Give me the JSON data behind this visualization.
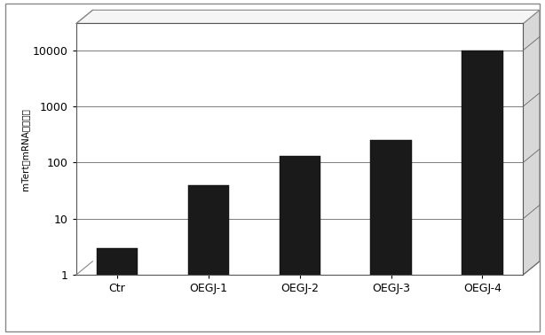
{
  "categories": [
    "Ctr",
    "OEGJ-1",
    "OEGJ-2",
    "OEGJ-3",
    "OEGJ-4"
  ],
  "values": [
    3,
    40,
    130,
    250,
    10000
  ],
  "bar_color": "#1a1a1a",
  "ylabel": "mTertのmRNAレベル数",
  "ylim_low": 1,
  "ylim_high": 30000,
  "background_color": "#ffffff",
  "plot_bg_color": "#ffffff",
  "outer_border_color": "#888888",
  "grid_color": "#666666",
  "bar_width": 0.45,
  "tick_fontsize": 9,
  "ylabel_fontsize": 7.5
}
